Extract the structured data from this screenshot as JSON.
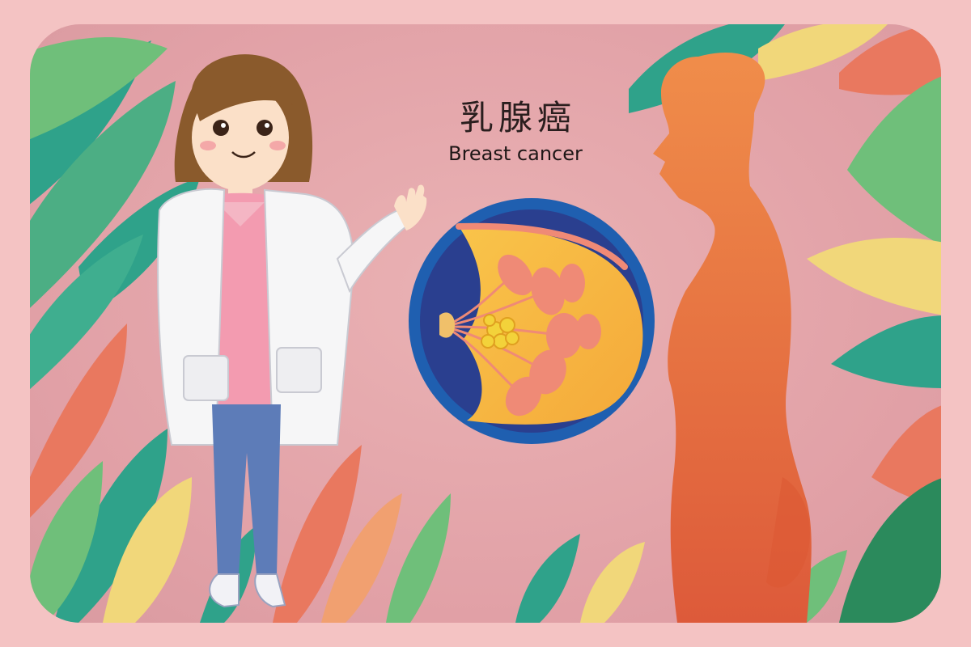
{
  "title": {
    "cn": "乳腺癌",
    "en": "Breast cancer"
  },
  "colors": {
    "page_border": "#f4c3c3",
    "card_background": "#e6a8ad",
    "leaf_teal": "#2fa28a",
    "leaf_green": "#6fbf7a",
    "leaf_yellow": "#f1d77a",
    "leaf_coral": "#e9785f",
    "silhouette": "#e56a3c",
    "breast_ring": "#1f5fb0",
    "breast_fill": "#f6b43b",
    "lobule": "#ef8a76",
    "tumor": "#f3d23a"
  }
}
